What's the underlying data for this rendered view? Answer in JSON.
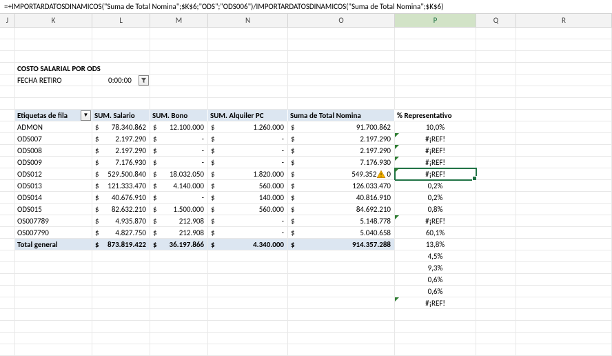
{
  "formula": "=+IMPORTARDATOSDINAMICOS(\"Suma de Total Nomina\";$K$6;\"ODS\";\"ODS006\")/IMPORTARDATOSDINAMICOS(\"Suma de Total Nomina\";$K$6)",
  "columns": [
    "J",
    "K",
    "L",
    "M",
    "N",
    "O",
    "P",
    "Q",
    "R"
  ],
  "selected_col": "P",
  "title": "COSTO SALARIAL POR ODS",
  "fecha_label": "FECHA RETIRO",
  "fecha_val": "0:00:00",
  "headers": {
    "k": "Etiquetas de fila",
    "l": "SUM. Salario",
    "m": "SUM. Bono",
    "n": "SUM. Alquiler PC",
    "o": "Suma de Total Nomina",
    "p": "% Representativo"
  },
  "rows": [
    {
      "k": "ADMON",
      "l": "78.340.862",
      "m": "12.100.000",
      "n": "1.260.000",
      "o": "91.700.862",
      "p": "10,0%",
      "err": false
    },
    {
      "k": "ODS007",
      "l": "2.197.290",
      "m": "-",
      "n": "-",
      "o": "2.197.290",
      "p": "#¡REF!",
      "err": true
    },
    {
      "k": "ODS008",
      "l": "2.197.290",
      "m": "-",
      "n": "-",
      "o": "2.197.290",
      "p": "#¡REF!",
      "err": true
    },
    {
      "k": "ODS009",
      "l": "7.176.930",
      "m": "-",
      "n": "-",
      "o": "7.176.930",
      "p": "#¡REF!",
      "err": true
    },
    {
      "k": "ODS012",
      "l": "529.500.840",
      "m": "18.032.050",
      "n": "1.820.000",
      "o": "549.352",
      "o_warn": true,
      "o_suffix": "0",
      "p": "#¡REF!",
      "err": true,
      "selected": true
    },
    {
      "k": "ODS013",
      "l": "121.333.470",
      "m": "4.140.000",
      "n": "560.000",
      "o": "126.033.470",
      "p": "0,2%",
      "err": false
    },
    {
      "k": "ODS014",
      "l": "40.676.910",
      "m": "-",
      "n": "140.000",
      "o": "40.816.910",
      "p": "0,2%",
      "err": false
    },
    {
      "k": "ODS015",
      "l": "82.632.210",
      "m": "1.500.000",
      "n": "560.000",
      "o": "84.692.210",
      "p": "0,8%",
      "err": false
    },
    {
      "k": "OS007789",
      "l": "4.935.870",
      "m": "212.908",
      "n": "-",
      "o": "5.148.778",
      "p": "#¡REF!",
      "err": true
    },
    {
      "k": "OS007790",
      "l": "4.827.750",
      "m": "212.908",
      "n": "-",
      "o": "5.040.658",
      "p": "60,1%",
      "err": false
    }
  ],
  "total": {
    "k": "Total general",
    "l": "873.819.422",
    "m": "36.197.866",
    "n": "4.340.000",
    "o": "914.357.288",
    "p": "13,8%"
  },
  "extra_p": [
    {
      "v": "4,5%",
      "err": false
    },
    {
      "v": "9,3%",
      "err": false
    },
    {
      "v": "0,6%",
      "err": false
    },
    {
      "v": "0,6%",
      "err": false
    },
    {
      "v": "#¡REF!",
      "err": true
    }
  ],
  "colors": {
    "grid": "#e8e8e8",
    "header_bg": "#f3f3f3",
    "blue_fill": "#dce6f1",
    "select_green": "#217346",
    "col_sel_bg": "#d2e3c7"
  }
}
